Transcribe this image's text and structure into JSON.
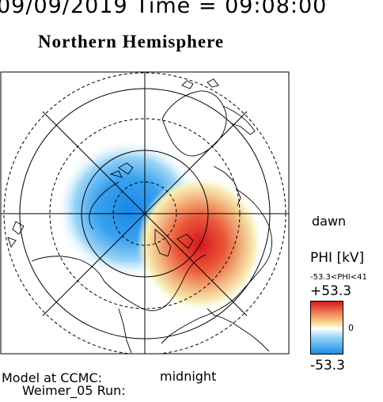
{
  "header": {
    "datetime": "09/09/2019 Time = 09:08:00",
    "title": "Northern Hemisphere"
  },
  "map_labels": {
    "dawn": "dawn",
    "midnight": "midnight"
  },
  "footer": {
    "model_line1": "Model at CCMC:",
    "model_line2": "Weimer_05 Run:"
  },
  "colorbar": {
    "title": "PHI [kV]",
    "range_text": "-53.3<PHI<41",
    "max_label": "+53.3",
    "min_label": "-53.3",
    "zero_label": "0",
    "colors": {
      "max": "#d8141c",
      "mid_high": "#f5e9a8",
      "zero": "#ffffff",
      "mid_low": "#8fd0f5",
      "min": "#1a8be6"
    }
  },
  "chart_data": {
    "type": "heatmap",
    "title": "Northern Hemisphere",
    "potential_cells": [
      {
        "sign": "negative",
        "sector": "pre-noon to dusk, high latitude",
        "extreme_kv": -53.3,
        "color": "#1a8be6"
      },
      {
        "sign": "positive",
        "sector": "dawn to post-midnight",
        "extreme_kv": 41,
        "color": "#d8141c"
      }
    ],
    "colorbar_range_kv": [
      -53.3,
      53.3
    ],
    "latitude_circles_deg": [
      80,
      70,
      60,
      50
    ],
    "meridians_deg": [
      0,
      45,
      90,
      135,
      180,
      225,
      270,
      315
    ],
    "orientation": {
      "right": "dawn",
      "bottom": "midnight"
    }
  }
}
